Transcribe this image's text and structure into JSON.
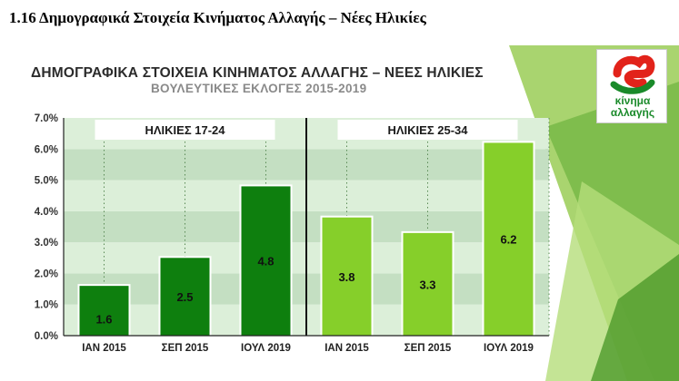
{
  "document": {
    "heading": "1.16 Δημογραφικά Στοιχεία Κινήματος Αλλαγής – Νέες Ηλικίες"
  },
  "slide": {
    "title": "ΔΗΜΟΓΡΑΦΙΚΑ ΣΤΟΙΧΕΙΑ ΚΙΝΗΜΑΤΟΣ ΑΛΛΑΓΗΣ – ΝΕΕΣ  ΗΛΙΚΙΕΣ",
    "subtitle": "ΒΟΥΛΕΥΤΙΚΕΣ ΕΚΛΟΓΕΣ 2015-2019",
    "logo": {
      "line1": "κίνημα",
      "line2": "αλλαγής",
      "icon": "kinal-logo-icon",
      "colors": {
        "red": "#e2231a",
        "green": "#1a8a2a"
      }
    }
  },
  "chart_data": {
    "type": "bar",
    "title": "ΔΗΜΟΓΡΑΦΙΚΑ ΣΤΟΙΧΕΙΑ ΚΙΝΗΜΑΤΟΣ ΑΛΛΑΓΗΣ – ΝΕΕΣ  ΗΛΙΚΙΕΣ",
    "subtitle": "ΒΟΥΛΕΥΤΙΚΕΣ ΕΚΛΟΓΕΣ 2015-2019",
    "xlabel": "",
    "ylabel": "",
    "ylim": [
      0,
      7
    ],
    "yticks": [
      "0.0%",
      "1.0%",
      "2.0%",
      "3.0%",
      "4.0%",
      "5.0%",
      "6.0%",
      "7.0%"
    ],
    "grid": true,
    "groups": [
      {
        "label": "ΗΛΙΚΙΕΣ 17-24",
        "color": "#0e7f0e",
        "categories": [
          "ΙΑΝ 2015",
          "ΣΕΠ 2015",
          "ΙΟΥΛ 2019"
        ],
        "values": [
          1.6,
          2.5,
          4.8
        ],
        "labels": [
          "1.6",
          "2.5",
          "4.8"
        ]
      },
      {
        "label": "ΗΛΙΚΙΕΣ 25-34",
        "color": "#86cf2a",
        "categories": [
          "ΙΑΝ 2015",
          "ΣΕΠ 2015",
          "ΙΟΥΛ 2019"
        ],
        "values": [
          3.8,
          3.3,
          6.2
        ],
        "labels": [
          "3.8",
          "3.3",
          "6.2"
        ]
      }
    ]
  }
}
